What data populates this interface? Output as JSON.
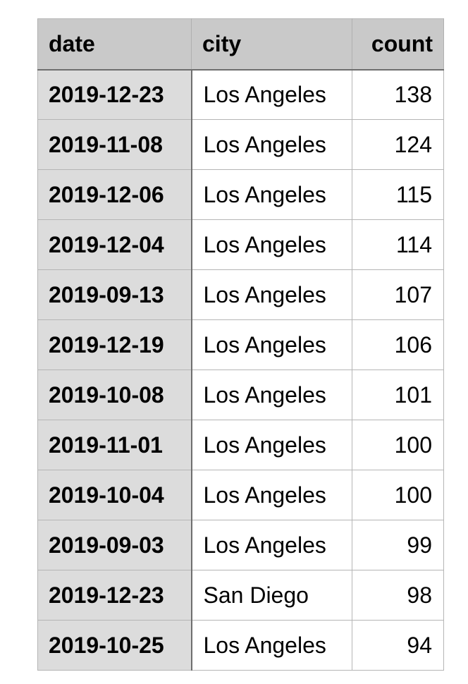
{
  "chart_data": {
    "type": "table",
    "columns": [
      "date",
      "city",
      "count"
    ],
    "rows": [
      [
        "2019-12-23",
        "Los Angeles",
        "138"
      ],
      [
        "2019-11-08",
        "Los Angeles",
        "124"
      ],
      [
        "2019-12-06",
        "Los Angeles",
        "115"
      ],
      [
        "2019-12-04",
        "Los Angeles",
        "114"
      ],
      [
        "2019-09-13",
        "Los Angeles",
        "107"
      ],
      [
        "2019-12-19",
        "Los Angeles",
        "106"
      ],
      [
        "2019-10-08",
        "Los Angeles",
        "101"
      ],
      [
        "2019-11-01",
        "Los Angeles",
        "100"
      ],
      [
        "2019-10-04",
        "Los Angeles",
        "100"
      ],
      [
        "2019-09-03",
        "Los Angeles",
        "99"
      ],
      [
        "2019-12-23",
        "San Diego",
        "98"
      ],
      [
        "2019-10-25",
        "Los Angeles",
        "94"
      ]
    ]
  },
  "colors": {
    "header_bg": "#c9c9c9",
    "index_column_bg": "#dcdcdc",
    "body_bg": "#ffffff",
    "grid_line": "#b5b5b5",
    "separator_line": "#6e6e6e"
  }
}
